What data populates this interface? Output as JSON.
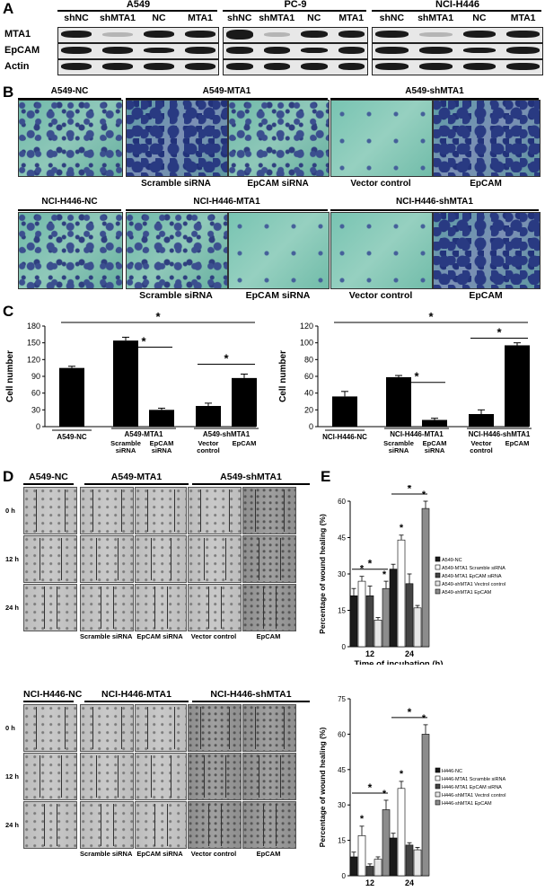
{
  "panels": {
    "A": "A",
    "B": "B",
    "C": "C",
    "D": "D",
    "E": "E"
  },
  "panel_a": {
    "groups": [
      "A549",
      "PC-9",
      "NCI-H446"
    ],
    "lanes": [
      "shNC",
      "shMTA1",
      "NC",
      "MTA1"
    ],
    "rows": [
      "MTA1",
      "EpCAM",
      "Actin"
    ]
  },
  "panel_b": {
    "row1_titles": [
      "A549-NC",
      "A549-MTA1",
      "A549-shMTA1"
    ],
    "row1_captions": [
      "Scramble siRNA",
      "EpCAM siRNA",
      "Vector control",
      "EpCAM"
    ],
    "row2_titles": [
      "NCI-H446-NC",
      "NCI-H446-MTA1",
      "NCI-H446-shMTA1"
    ],
    "row2_captions": [
      "Scramble siRNA",
      "EpCAM siRNA",
      "Vector control",
      "EpCAM"
    ]
  },
  "panel_d": {
    "top_titles": [
      "A549-NC",
      "A549-MTA1",
      "A549-shMTA1"
    ],
    "bottom_titles": [
      "NCI-H446-NC",
      "NCI-H446-MTA1",
      "NCI-H446-shMTA1"
    ],
    "times": [
      "0 h",
      "12 h",
      "24 h"
    ],
    "captions": [
      "Scramble siRNA",
      "EpCAM siRNA",
      "Vector control",
      "EpCAM"
    ]
  },
  "chart_data": [
    {
      "type": "bar",
      "panel": "C-left",
      "ylabel": "Cell  number",
      "ylim": [
        0,
        180
      ],
      "yticks": [
        0,
        30,
        60,
        90,
        120,
        150,
        180
      ],
      "categories": [
        "A549-NC",
        "A549-MTA1 Scramble siRNA",
        "A549-MTA1 EpCAM siRNA",
        "A549-shMTA1 Vector control",
        "A549-shMTA1 EpCAM"
      ],
      "values": [
        105,
        154,
        30,
        37,
        87
      ],
      "errors": [
        3,
        6,
        3,
        5,
        7
      ],
      "group_labels": [
        "A549-NC",
        "A549-MTA1",
        "A549-shMTA1"
      ],
      "sub_labels": [
        "Scramble siRNA",
        "EpCAM siRNA",
        "Vector control",
        "EpCAM"
      ],
      "significance": "*"
    },
    {
      "type": "bar",
      "panel": "C-right",
      "ylabel": "Cell  number",
      "ylim": [
        0,
        120
      ],
      "yticks": [
        0,
        20,
        40,
        60,
        80,
        100,
        120
      ],
      "categories": [
        "NCI-H446-NC",
        "NCI-H446-MTA1 Scramble siRNA",
        "NCI-H446-MTA1 EpCAM siRNA",
        "NCI-H446-shMTA1 Vector control",
        "NCI-H446-shMTA1 EpCAM"
      ],
      "values": [
        36,
        59,
        8,
        15,
        97
      ],
      "errors": [
        6,
        2,
        2,
        5,
        3
      ],
      "group_labels": [
        "NCI-H446-NC",
        "NCI-H446-MTA1",
        "NCI-H446-shMTA1"
      ],
      "sub_labels": [
        "Scramble siRNA",
        "EpCAM siRNA",
        "Vector control",
        "EpCAM"
      ],
      "significance": "*"
    },
    {
      "type": "bar",
      "panel": "E-top",
      "ylabel": "Percentage of wound healing (%)",
      "xlabel": "Time of incubation (h)",
      "ylim": [
        0,
        60
      ],
      "yticks": [
        0,
        15,
        30,
        45,
        60
      ],
      "categories": [
        "12",
        "24"
      ],
      "series": [
        {
          "name": "A549-NC",
          "values": [
            21,
            32
          ],
          "errors": [
            3,
            2
          ],
          "color": "#1a1a1a"
        },
        {
          "name": "A549-MTA1  Scramble siRNA",
          "values": [
            27,
            44
          ],
          "errors": [
            2,
            2
          ],
          "color": "#ffffff"
        },
        {
          "name": "A549-MTA1 EpCAM siRNA",
          "values": [
            21,
            26
          ],
          "errors": [
            4,
            4
          ],
          "color": "#444444"
        },
        {
          "name": "A549-shMTA1 Vectrol control",
          "values": [
            11,
            16
          ],
          "errors": [
            1,
            1
          ],
          "color": "#e6e6e6"
        },
        {
          "name": "A549-shMTA1 EpCAM",
          "values": [
            24,
            57
          ],
          "errors": [
            3,
            3
          ],
          "color": "#8c8c8c"
        }
      ],
      "significance": "*"
    },
    {
      "type": "bar",
      "panel": "E-bottom",
      "ylabel": "Percentage of wound healing (%)",
      "xlabel": "Time of incubation (h)",
      "ylim": [
        0,
        75
      ],
      "yticks": [
        0,
        15,
        30,
        45,
        60,
        75
      ],
      "categories": [
        "12",
        "24"
      ],
      "series": [
        {
          "name": "H446-NC",
          "values": [
            8,
            16
          ],
          "errors": [
            2,
            2
          ],
          "color": "#1a1a1a"
        },
        {
          "name": "H446-MTA1  Scramble siRNA",
          "values": [
            17,
            37
          ],
          "errors": [
            4,
            3
          ],
          "color": "#ffffff"
        },
        {
          "name": "H446-MTA1 EpCAM siRNA",
          "values": [
            4,
            13
          ],
          "errors": [
            1,
            1
          ],
          "color": "#444444"
        },
        {
          "name": "H446-shMTA1 Vectrol control",
          "values": [
            7,
            11
          ],
          "errors": [
            1,
            1
          ],
          "color": "#e6e6e6"
        },
        {
          "name": "H446-shMTA1 EpCAM",
          "values": [
            28,
            60
          ],
          "errors": [
            4,
            4
          ],
          "color": "#8c8c8c"
        }
      ],
      "significance": "*"
    }
  ]
}
